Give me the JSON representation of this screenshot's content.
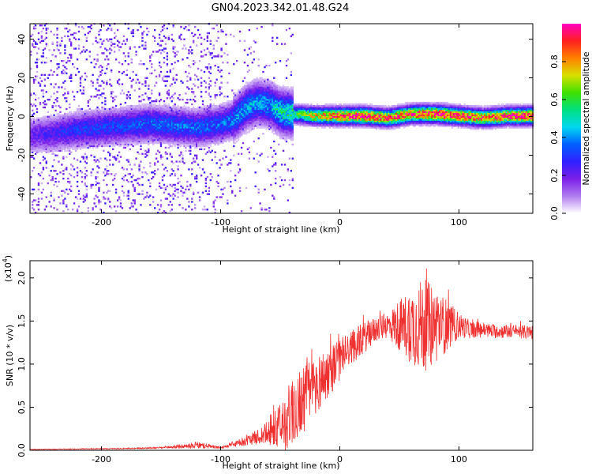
{
  "title": "GN04.2023.342.01.48.G24",
  "chart_data": [
    {
      "type": "heatmap",
      "xlabel": "Height of straight line (km)",
      "ylabel": "Frequency (Hz)",
      "xlim": [
        -260,
        162
      ],
      "ylim": [
        -50,
        48
      ],
      "xticks": [
        -200,
        -100,
        0,
        100
      ],
      "yticks": [
        -40,
        -20,
        0,
        20,
        40
      ],
      "colorbar": {
        "label": "Normalized spectral amplitude",
        "range": [
          0,
          1
        ],
        "ticks": [
          "0.0",
          "0.2",
          "0.4",
          "0.6",
          "0.8"
        ],
        "colors": [
          "#ffffff",
          "#b07cf0",
          "#7b1fe8",
          "#3020ff",
          "#0060ff",
          "#00d8f0",
          "#00e080",
          "#40e000",
          "#d8e000",
          "#ff8000",
          "#ff2020",
          "#ff00c0"
        ]
      },
      "ridge": {
        "x_km": [
          -260,
          -240,
          -220,
          -200,
          -180,
          -160,
          -140,
          -120,
          -100,
          -90,
          -80,
          -70,
          -60,
          -50,
          -40,
          -20,
          0,
          20,
          40,
          60,
          80,
          100,
          120,
          140,
          162
        ],
        "center_hz": [
          -10,
          -9,
          -7,
          -6,
          -5,
          -4,
          -5,
          -6,
          -4,
          -2,
          4,
          7,
          6,
          2,
          1,
          0,
          0,
          0,
          -1,
          1,
          1,
          0,
          -1,
          0,
          0
        ],
        "peak_amplitude": [
          0.2,
          0.25,
          0.3,
          0.3,
          0.32,
          0.35,
          0.35,
          0.35,
          0.35,
          0.38,
          0.4,
          0.42,
          0.4,
          0.5,
          0.55,
          0.75,
          0.9,
          0.95,
          0.85,
          0.9,
          0.95,
          0.9,
          0.85,
          0.9,
          0.95
        ]
      }
    },
    {
      "type": "line",
      "xlabel": "Height of straight line (km)",
      "ylabel": "SNR (10 * v/v)",
      "yscale_label": "(x10",
      "yscale_exp": "4",
      "xlim": [
        -260,
        162
      ],
      "ylim": [
        0,
        2.2
      ],
      "xticks": [
        -200,
        -100,
        0,
        100
      ],
      "yticks": [
        "0.0",
        "0.5",
        "1.0",
        "1.5",
        "2.0"
      ],
      "series": [
        {
          "color": "#ee3030",
          "x": [
            -260,
            -220,
            -180,
            -150,
            -125,
            -120,
            -100,
            -80,
            -70,
            -60,
            -50,
            -40,
            -30,
            -20,
            -10,
            0,
            10,
            20,
            30,
            40,
            50,
            60,
            70,
            80,
            90,
            100,
            110,
            120,
            130,
            140,
            150,
            162
          ],
          "y": [
            0.01,
            0.015,
            0.02,
            0.03,
            0.05,
            0.06,
            0.03,
            0.1,
            0.15,
            0.2,
            0.25,
            0.45,
            0.6,
            0.75,
            0.9,
            1.05,
            1.2,
            1.3,
            1.4,
            1.45,
            1.45,
            1.45,
            1.45,
            1.45,
            1.45,
            1.45,
            1.4,
            1.4,
            1.38,
            1.38,
            1.38,
            1.36
          ],
          "noise": [
            0.003,
            0.004,
            0.006,
            0.01,
            0.03,
            0.04,
            0.01,
            0.05,
            0.08,
            0.15,
            0.3,
            0.4,
            0.4,
            0.35,
            0.3,
            0.25,
            0.2,
            0.18,
            0.15,
            0.15,
            0.3,
            0.45,
            0.55,
            0.45,
            0.3,
            0.15,
            0.1,
            0.09,
            0.08,
            0.08,
            0.08,
            0.08
          ]
        }
      ]
    }
  ]
}
